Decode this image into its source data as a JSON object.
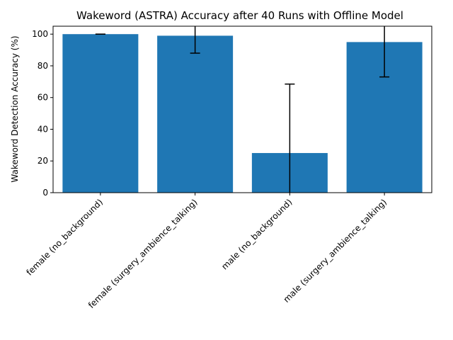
{
  "chart_data": {
    "type": "bar",
    "title": "Wakeword (ASTRA) Accuracy after 40 Runs with Offline Model",
    "xlabel": "",
    "ylabel": "Wakeword Detection Accuracy (%)",
    "categories": [
      "female (no_background)",
      "female (surgery_ambience_talking)",
      "male (no_background)",
      "male (surgery_ambience_talking)"
    ],
    "values": [
      100,
      99,
      25,
      95
    ],
    "error": [
      0,
      11,
      43.5,
      22
    ],
    "ylim": [
      0,
      105
    ],
    "yticks": [
      0,
      20,
      40,
      60,
      80,
      100
    ],
    "grid": false,
    "legend": "none",
    "bar_color": "#1f77b4",
    "error_color": "#000000"
  }
}
